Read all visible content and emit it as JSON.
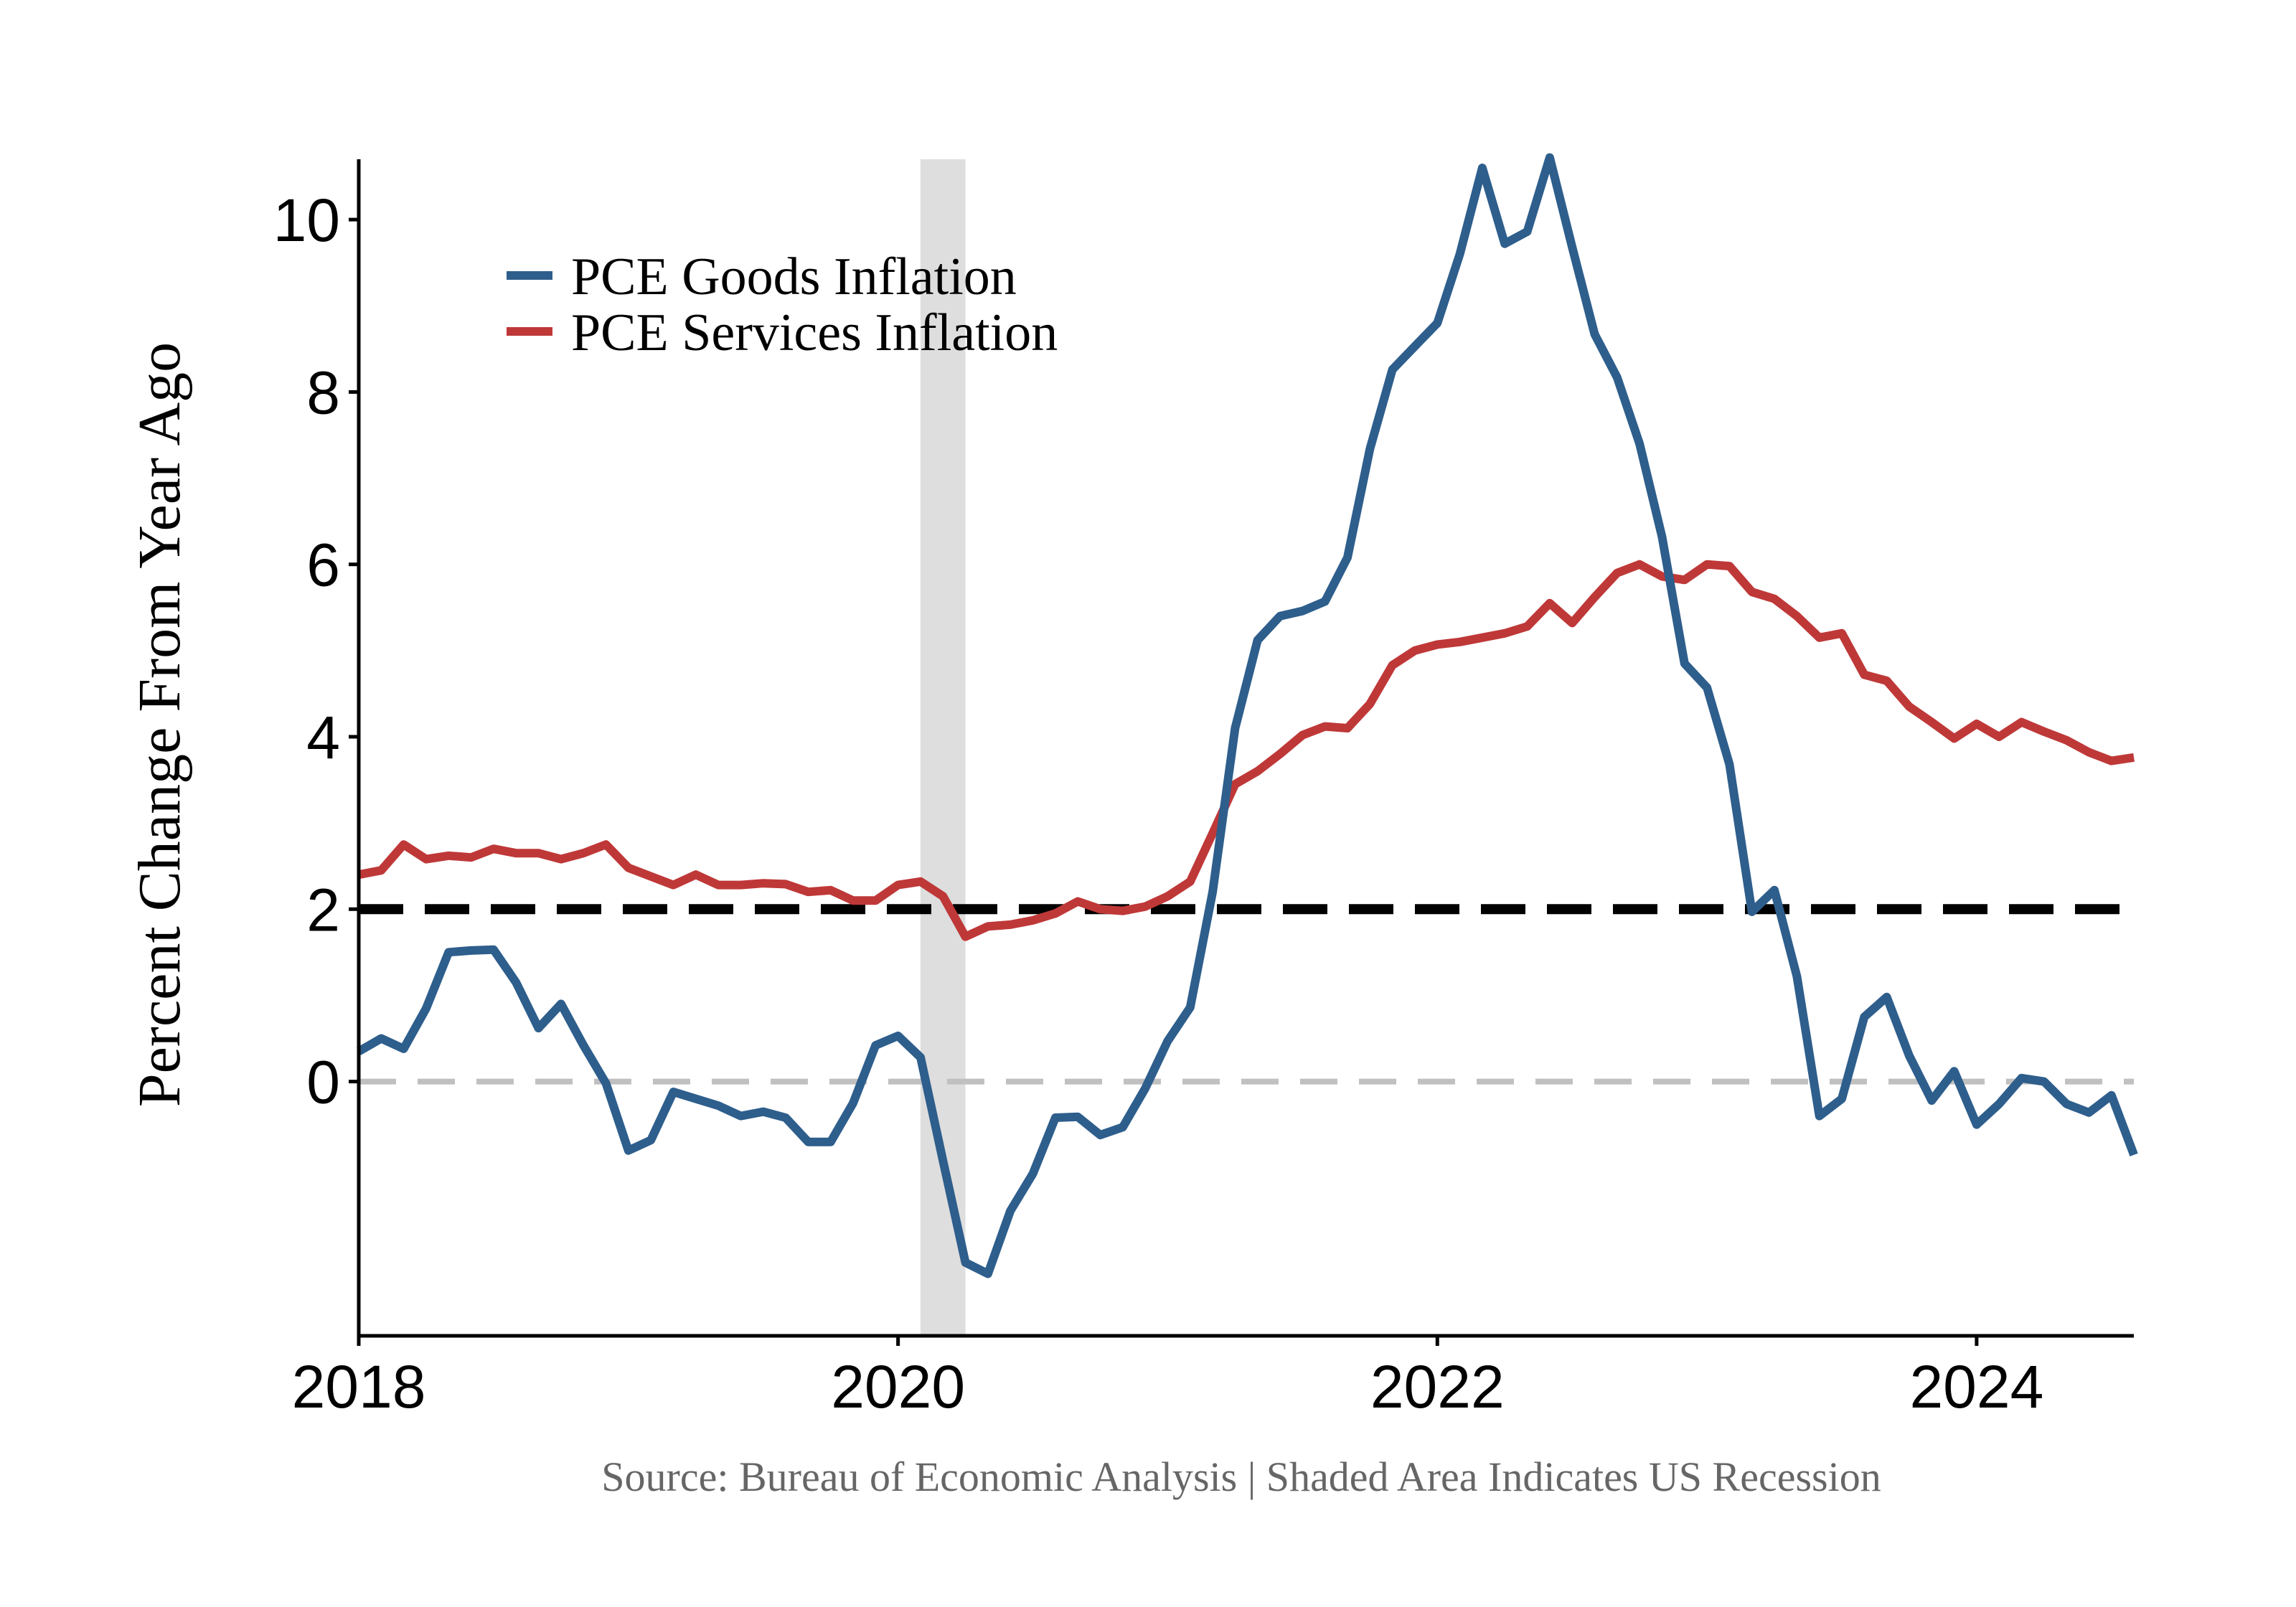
{
  "chart_data": {
    "type": "line",
    "title": "",
    "xlabel": "",
    "ylabel": "Percent Change From Year Ago",
    "xlim": [
      2018.0,
      2024.583
    ],
    "ylim": [
      -2.95,
      10.7
    ],
    "yticks": [
      0,
      2,
      4,
      6,
      8,
      10
    ],
    "xticks": [
      2018,
      2020,
      2022,
      2024
    ],
    "grid": false,
    "legend_position": "top-left",
    "colors": {
      "goods": "#2e5e8c",
      "services": "#bf3838",
      "target": "#000000",
      "zero": "#c0c0c0",
      "recession": "#dedede"
    },
    "recession": {
      "start": 2020.083,
      "end": 2020.25
    },
    "reference_lines": [
      {
        "name": "target",
        "y": 2,
        "style": "dashed-black"
      },
      {
        "name": "zero",
        "y": 0,
        "style": "dashed-gray"
      }
    ],
    "x_start": "2018-01",
    "series": [
      {
        "name": "PCE Goods Inflation",
        "color": "#2e5e8c",
        "values": [
          0.35,
          0.5,
          0.38,
          0.85,
          1.5,
          1.52,
          1.53,
          1.15,
          0.62,
          0.9,
          0.42,
          -0.02,
          -0.8,
          -0.68,
          -0.12,
          -0.2,
          -0.28,
          -0.4,
          -0.35,
          -0.42,
          -0.7,
          -0.7,
          -0.25,
          0.42,
          0.53,
          0.28,
          -0.92,
          -2.1,
          -2.23,
          -1.5,
          -1.07,
          -0.42,
          -0.41,
          -0.62,
          -0.53,
          -0.08,
          0.47,
          0.86,
          2.2,
          4.1,
          5.12,
          5.4,
          5.46,
          5.57,
          6.08,
          7.34,
          8.26,
          8.53,
          8.8,
          9.6,
          10.6,
          9.72,
          9.86,
          10.72,
          9.68,
          8.67,
          8.17,
          7.4,
          6.32,
          4.85,
          4.57,
          3.68,
          1.97,
          2.22,
          1.22,
          -0.4,
          -0.2,
          0.75,
          0.98,
          0.3,
          -0.22,
          0.12,
          -0.5,
          -0.26,
          0.04,
          0.0,
          -0.26,
          -0.36,
          -0.16,
          -0.85
        ]
      },
      {
        "name": "PCE Services Inflation",
        "color": "#bf3838",
        "values": [
          2.4,
          2.45,
          2.75,
          2.58,
          2.62,
          2.6,
          2.7,
          2.65,
          2.65,
          2.58,
          2.65,
          2.75,
          2.48,
          2.38,
          2.28,
          2.4,
          2.28,
          2.28,
          2.3,
          2.29,
          2.2,
          2.22,
          2.1,
          2.1,
          2.28,
          2.32,
          2.15,
          1.68,
          1.8,
          1.82,
          1.87,
          1.95,
          2.09,
          2.0,
          1.98,
          2.03,
          2.15,
          2.32,
          2.88,
          3.45,
          3.6,
          3.8,
          4.02,
          4.12,
          4.1,
          4.38,
          4.83,
          5.0,
          5.07,
          5.1,
          5.15,
          5.2,
          5.28,
          5.55,
          5.32,
          5.62,
          5.9,
          6.0,
          5.86,
          5.82,
          6.0,
          5.98,
          5.68,
          5.6,
          5.4,
          5.15,
          5.2,
          4.72,
          4.65,
          4.35,
          4.17,
          3.98,
          4.15,
          4.0,
          4.17,
          4.06,
          3.96,
          3.82,
          3.72,
          3.76
        ]
      }
    ],
    "source_note": "Source: Bureau of Economic Analysis  | Shaded Area Indicates US Recession"
  }
}
